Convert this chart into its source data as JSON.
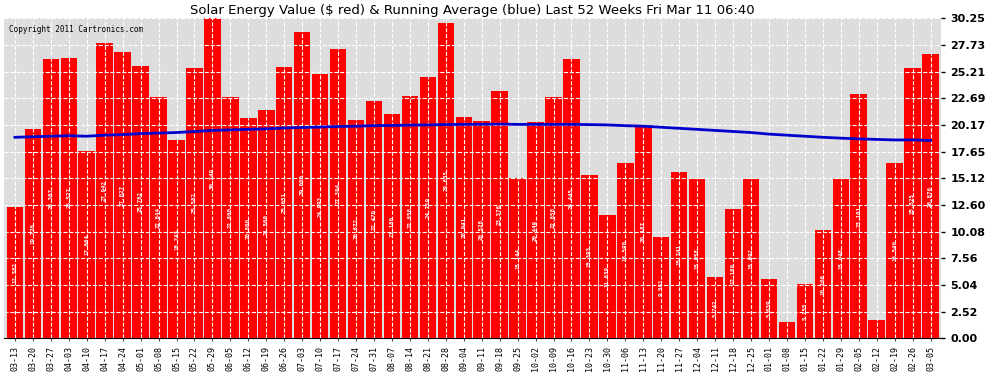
{
  "title": "Solar Energy Value ($ red) & Running Average (blue) Last 52 Weeks Fri Mar 11 06:40",
  "copyright": "Copyright 2011 Cartronics.com",
  "bar_color": "#ff0000",
  "line_color": "#0000cc",
  "background_color": "#ffffff",
  "plot_bg_color": "#ffffff",
  "grid_color": "#aaaaaa",
  "ylim": [
    0.0,
    30.25
  ],
  "yticks": [
    0.0,
    2.52,
    5.04,
    7.56,
    10.08,
    12.6,
    15.12,
    17.65,
    20.17,
    22.69,
    25.21,
    27.73,
    30.25
  ],
  "dates": [
    "03-13",
    "03-20",
    "03-27",
    "04-03",
    "04-10",
    "04-17",
    "04-24",
    "05-01",
    "05-08",
    "05-15",
    "05-22",
    "05-29",
    "06-05",
    "06-12",
    "06-19",
    "06-26",
    "07-03",
    "07-10",
    "07-17",
    "07-24",
    "07-31",
    "08-07",
    "08-14",
    "08-21",
    "08-28",
    "09-04",
    "09-11",
    "09-18",
    "09-25",
    "10-02",
    "10-09",
    "10-16",
    "10-23",
    "10-30",
    "11-06",
    "11-13",
    "11-20",
    "11-27",
    "12-04",
    "12-11",
    "12-18",
    "12-25",
    "01-01",
    "01-08",
    "01-15",
    "01-22",
    "01-29",
    "02-05",
    "02-12",
    "02-19",
    "02-26",
    "03-05"
  ],
  "values": [
    12.382,
    19.776,
    26.367,
    26.527,
    17.664,
    27.942,
    27.027,
    25.782,
    22.844,
    18.743,
    25.582,
    30.249,
    22.8,
    20.8,
    21.56,
    25.651,
    29.0,
    24.993,
    27.394,
    20.672,
    22.47,
    21.18,
    22.858,
    24.719,
    29.835,
    20.941,
    20.528,
    23.376,
    15.144,
    20.449,
    22.85,
    26.445,
    15.393,
    11.639,
    16.59,
    20.187,
    9.581,
    15.741,
    15.058,
    5.742,
    12.18,
    15.092,
    5.639,
    1.577,
    5.155,
    10.206,
    15.048,
    23.101,
    1.707,
    16.54,
    25.525,
    26.876
  ],
  "running_avg": [
    19.0,
    19.05,
    19.1,
    19.15,
    19.1,
    19.2,
    19.25,
    19.35,
    19.4,
    19.45,
    19.55,
    19.65,
    19.7,
    19.75,
    19.8,
    19.88,
    19.93,
    19.97,
    20.02,
    20.05,
    20.1,
    20.12,
    20.15,
    20.17,
    20.2,
    20.22,
    20.23,
    20.25,
    20.22,
    20.22,
    20.22,
    20.22,
    20.2,
    20.17,
    20.1,
    20.05,
    19.95,
    19.85,
    19.75,
    19.65,
    19.55,
    19.45,
    19.3,
    19.2,
    19.1,
    19.0,
    18.92,
    18.85,
    18.8,
    18.75,
    18.75,
    18.7
  ]
}
